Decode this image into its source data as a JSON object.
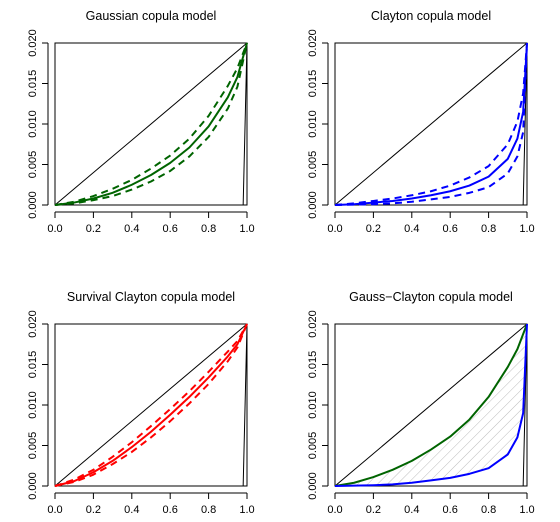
{
  "chart_data": [
    {
      "type": "line",
      "title": "Gaussian copula model",
      "xlabel": "",
      "ylabel": "",
      "xlim": [
        0,
        1
      ],
      "ylim": [
        0,
        0.02
      ],
      "xticks": [
        0.0,
        0.2,
        0.4,
        0.6,
        0.8,
        1.0
      ],
      "xtick_labels": [
        "0.0",
        "0.2",
        "0.4",
        "0.6",
        "0.8",
        "1.0"
      ],
      "yticks": [
        0.0,
        0.005,
        0.01,
        0.015,
        0.02
      ],
      "ytick_labels": [
        "0.000",
        "0.005",
        "0.010",
        "0.015",
        "0.020"
      ],
      "grid": false,
      "reference": {
        "diagonal": {
          "x": [
            0,
            1
          ],
          "y": [
            0,
            0.02
          ]
        },
        "bound": {
          "x": [
            0,
            0.98,
            1.0
          ],
          "y": [
            0,
            0,
            0.02
          ]
        }
      },
      "series": [
        {
          "role": "estimate",
          "style": "solid",
          "color": "#006400",
          "x": [
            0,
            0.1,
            0.2,
            0.3,
            0.4,
            0.5,
            0.6,
            0.7,
            0.8,
            0.9,
            0.95,
            1.0
          ],
          "y": [
            0,
            0.0003,
            0.0008,
            0.0015,
            0.0025,
            0.0037,
            0.0052,
            0.0071,
            0.0097,
            0.0133,
            0.0158,
            0.02
          ]
        },
        {
          "role": "upper band",
          "style": "dashed",
          "color": "#006400",
          "x": [
            0,
            0.1,
            0.2,
            0.3,
            0.4,
            0.5,
            0.6,
            0.7,
            0.8,
            0.9,
            0.95,
            1.0
          ],
          "y": [
            0,
            0.0004,
            0.0011,
            0.002,
            0.0031,
            0.0045,
            0.0061,
            0.0082,
            0.011,
            0.0147,
            0.0169,
            0.02
          ]
        },
        {
          "role": "lower band",
          "style": "dashed",
          "color": "#006400",
          "x": [
            0,
            0.1,
            0.2,
            0.3,
            0.4,
            0.5,
            0.6,
            0.7,
            0.8,
            0.9,
            0.95,
            1.0
          ],
          "y": [
            0,
            0.0002,
            0.0006,
            0.0011,
            0.0019,
            0.0029,
            0.0042,
            0.006,
            0.0084,
            0.0119,
            0.0146,
            0.02
          ]
        }
      ]
    },
    {
      "type": "line",
      "title": "Clayton copula model",
      "xlabel": "",
      "ylabel": "",
      "xlim": [
        0,
        1
      ],
      "ylim": [
        0,
        0.02
      ],
      "xticks": [
        0.0,
        0.2,
        0.4,
        0.6,
        0.8,
        1.0
      ],
      "xtick_labels": [
        "0.0",
        "0.2",
        "0.4",
        "0.6",
        "0.8",
        "1.0"
      ],
      "yticks": [
        0.0,
        0.005,
        0.01,
        0.015,
        0.02
      ],
      "ytick_labels": [
        "0.000",
        "0.005",
        "0.010",
        "0.015",
        "0.020"
      ],
      "grid": false,
      "reference": {
        "diagonal": {
          "x": [
            0,
            1
          ],
          "y": [
            0,
            0.02
          ]
        },
        "bound": {
          "x": [
            0,
            0.98,
            1.0
          ],
          "y": [
            0,
            0,
            0.02
          ]
        }
      },
      "series": [
        {
          "role": "estimate",
          "style": "solid",
          "color": "#0000ff",
          "x": [
            0,
            0.1,
            0.2,
            0.3,
            0.4,
            0.5,
            0.6,
            0.7,
            0.8,
            0.9,
            0.95,
            0.98,
            1.0
          ],
          "y": [
            0,
            0.0001,
            0.0003,
            0.0005,
            0.0008,
            0.0012,
            0.0017,
            0.0024,
            0.0035,
            0.0057,
            0.0082,
            0.0115,
            0.02
          ]
        },
        {
          "role": "upper band",
          "style": "dashed",
          "color": "#0000ff",
          "x": [
            0,
            0.1,
            0.2,
            0.3,
            0.4,
            0.5,
            0.6,
            0.7,
            0.8,
            0.9,
            0.95,
            0.98,
            1.0
          ],
          "y": [
            0,
            0.0002,
            0.0005,
            0.0008,
            0.0012,
            0.0017,
            0.0024,
            0.0034,
            0.0048,
            0.0075,
            0.0103,
            0.0138,
            0.02
          ]
        },
        {
          "role": "lower band",
          "style": "dashed",
          "color": "#0000ff",
          "x": [
            0,
            0.1,
            0.2,
            0.3,
            0.4,
            0.5,
            0.6,
            0.7,
            0.8,
            0.9,
            0.95,
            0.98,
            1.0
          ],
          "y": [
            0,
            5e-05,
            0.0001,
            0.0002,
            0.0004,
            0.0007,
            0.001,
            0.0015,
            0.0022,
            0.0039,
            0.006,
            0.009,
            0.02
          ]
        }
      ]
    },
    {
      "type": "line",
      "title": "Survival Clayton copula model",
      "xlabel": "",
      "ylabel": "",
      "xlim": [
        0,
        1
      ],
      "ylim": [
        0,
        0.02
      ],
      "xticks": [
        0.0,
        0.2,
        0.4,
        0.6,
        0.8,
        1.0
      ],
      "xtick_labels": [
        "0.0",
        "0.2",
        "0.4",
        "0.6",
        "0.8",
        "1.0"
      ],
      "yticks": [
        0.0,
        0.005,
        0.01,
        0.015,
        0.02
      ],
      "ytick_labels": [
        "0.000",
        "0.005",
        "0.010",
        "0.015",
        "0.020"
      ],
      "grid": false,
      "reference": {
        "diagonal": {
          "x": [
            0,
            1
          ],
          "y": [
            0,
            0.02
          ]
        },
        "bound": {
          "x": [
            0,
            0.98,
            1.0
          ],
          "y": [
            0,
            0,
            0.02
          ]
        }
      },
      "series": [
        {
          "role": "estimate",
          "style": "solid",
          "color": "#ff0000",
          "x": [
            0,
            0.1,
            0.2,
            0.3,
            0.4,
            0.5,
            0.6,
            0.7,
            0.8,
            0.9,
            0.95,
            1.0
          ],
          "y": [
            0,
            0.0006,
            0.0017,
            0.0031,
            0.0048,
            0.0067,
            0.0088,
            0.011,
            0.0134,
            0.016,
            0.0175,
            0.02
          ]
        },
        {
          "role": "upper band",
          "style": "dashed",
          "color": "#ff0000",
          "x": [
            0,
            0.1,
            0.2,
            0.3,
            0.4,
            0.5,
            0.6,
            0.7,
            0.8,
            0.9,
            0.95,
            1.0
          ],
          "y": [
            0,
            0.0008,
            0.002,
            0.0036,
            0.0054,
            0.0074,
            0.0095,
            0.0117,
            0.0141,
            0.0166,
            0.0179,
            0.02
          ]
        },
        {
          "role": "lower band",
          "style": "dashed",
          "color": "#ff0000",
          "x": [
            0,
            0.1,
            0.2,
            0.3,
            0.4,
            0.5,
            0.6,
            0.7,
            0.8,
            0.9,
            0.95,
            1.0
          ],
          "y": [
            0,
            0.0005,
            0.0014,
            0.0027,
            0.0042,
            0.006,
            0.008,
            0.0102,
            0.0126,
            0.0154,
            0.0171,
            0.02
          ]
        }
      ]
    },
    {
      "type": "line",
      "title": "Gauss−Clayton copula model",
      "xlabel": "",
      "ylabel": "",
      "xlim": [
        0,
        1
      ],
      "ylim": [
        0,
        0.02
      ],
      "xticks": [
        0.0,
        0.2,
        0.4,
        0.6,
        0.8,
        1.0
      ],
      "xtick_labels": [
        "0.0",
        "0.2",
        "0.4",
        "0.6",
        "0.8",
        "1.0"
      ],
      "yticks": [
        0.0,
        0.005,
        0.01,
        0.015,
        0.02
      ],
      "ytick_labels": [
        "0.000",
        "0.005",
        "0.010",
        "0.015",
        "0.020"
      ],
      "grid": false,
      "shaded_region": "hatched area between the two curves",
      "reference": {
        "diagonal": {
          "x": [
            0,
            1
          ],
          "y": [
            0,
            0.02
          ]
        },
        "bound": {
          "x": [
            0,
            0.98,
            1.0
          ],
          "y": [
            0,
            0,
            0.02
          ]
        }
      },
      "series": [
        {
          "role": "upper curve",
          "style": "solid",
          "color": "#006400",
          "x": [
            0,
            0.1,
            0.2,
            0.3,
            0.4,
            0.5,
            0.6,
            0.7,
            0.8,
            0.9,
            0.95,
            1.0
          ],
          "y": [
            0,
            0.0004,
            0.0011,
            0.002,
            0.0031,
            0.0045,
            0.0061,
            0.0082,
            0.011,
            0.0147,
            0.0169,
            0.02
          ]
        },
        {
          "role": "lower curve",
          "style": "solid",
          "color": "#0000ff",
          "x": [
            0,
            0.1,
            0.2,
            0.3,
            0.4,
            0.5,
            0.6,
            0.7,
            0.8,
            0.9,
            0.95,
            0.98,
            1.0
          ],
          "y": [
            0,
            5e-05,
            0.0001,
            0.0002,
            0.0004,
            0.0007,
            0.001,
            0.0015,
            0.0022,
            0.0039,
            0.006,
            0.009,
            0.02
          ]
        }
      ]
    }
  ]
}
